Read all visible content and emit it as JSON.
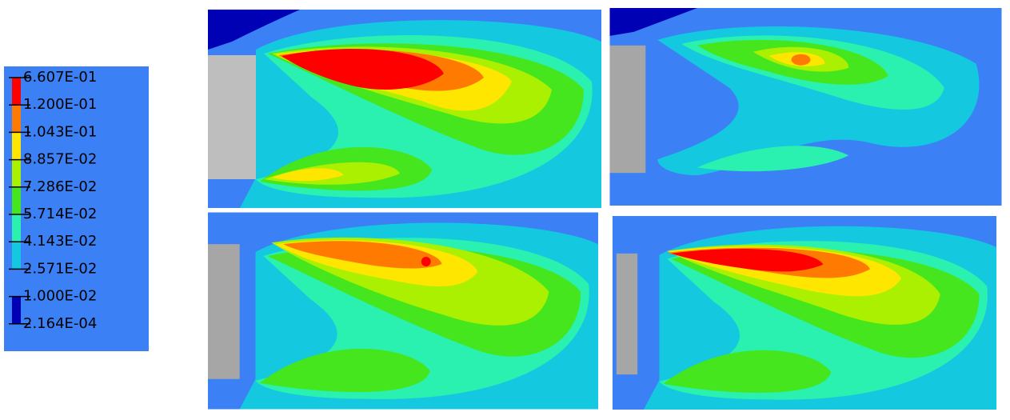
{
  "legend": {
    "labels": [
      "6.607E-01",
      "1.200E-01",
      "1.043E-01",
      "8.857E-02",
      "7.286E-02",
      "5.714E-02",
      "4.143E-02",
      "2.571E-02",
      "1.000E-02",
      "2.164E-04"
    ],
    "colors": [
      "#ff0000",
      "#ff7a00",
      "#ffe600",
      "#aaf000",
      "#46e61e",
      "#2af0b0",
      "#14c8e0",
      "#3c80f5",
      "#0000b4"
    ]
  }
}
